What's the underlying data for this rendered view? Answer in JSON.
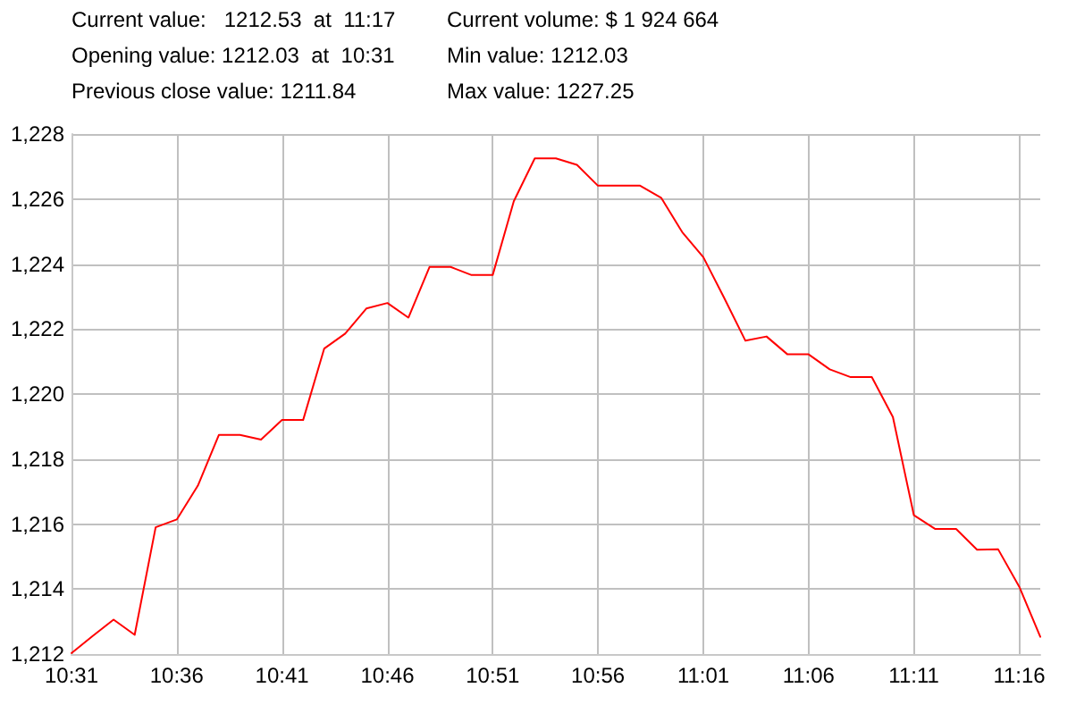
{
  "chart_data": {
    "type": "line",
    "annotations": [
      "Current value:   1212.53  at  11:17",
      "Current volume: $ 1 924 664",
      "Opening value: 1212.03  at  10:31",
      "Min value: 1212.03",
      "Previous close value: 1211.84",
      "Max value: 1227.25"
    ],
    "x": [
      10.5167,
      10.5333,
      10.55,
      10.5667,
      10.5833,
      10.6,
      10.6167,
      10.6333,
      10.65,
      10.6667,
      10.6833,
      10.7,
      10.7167,
      10.7333,
      10.75,
      10.7667,
      10.7833,
      10.8,
      10.8167,
      10.8333,
      10.85,
      10.8667,
      10.8833,
      10.9,
      10.9167,
      10.9333,
      10.95,
      10.9667,
      10.9833,
      11.0,
      11.0167,
      11.0333,
      11.05,
      11.0667,
      11.0833,
      11.1,
      11.1167,
      11.1333,
      11.15,
      11.1667,
      11.1833,
      11.2,
      11.2167,
      11.2333,
      11.25,
      11.2667,
      11.2833
    ],
    "series": [
      {
        "color": "#ff0000",
        "values": [
          1212.03,
          1212.55,
          1213.06,
          1212.59,
          1215.9,
          1216.14,
          1217.18,
          1218.74,
          1218.74,
          1218.6,
          1219.2,
          1219.2,
          1221.4,
          1221.86,
          1222.63,
          1222.8,
          1222.35,
          1223.91,
          1223.91,
          1223.66,
          1223.66,
          1225.93,
          1227.25,
          1227.25,
          1227.05,
          1226.41,
          1226.41,
          1226.41,
          1226.04,
          1224.98,
          1224.21,
          1222.95,
          1221.64,
          1221.77,
          1221.22,
          1221.22,
          1220.76,
          1220.52,
          1220.52,
          1219.29,
          1216.27,
          1215.85,
          1215.85,
          1215.21,
          1215.22,
          1214.07,
          1212.53
        ]
      }
    ],
    "xlim": [
      10.5167,
      11.2833
    ],
    "xticks": [
      {
        "value": 10.5167,
        "label": "10:31"
      },
      {
        "value": 10.6,
        "label": "10:36"
      },
      {
        "value": 10.6833,
        "label": "10:41"
      },
      {
        "value": 10.7667,
        "label": "10:46"
      },
      {
        "value": 10.85,
        "label": "10:51"
      },
      {
        "value": 10.9333,
        "label": "10:56"
      },
      {
        "value": 11.0167,
        "label": "11:01"
      },
      {
        "value": 11.1,
        "label": "11:06"
      },
      {
        "value": 11.1833,
        "label": "11:11"
      },
      {
        "value": 11.2667,
        "label": "11:16"
      }
    ],
    "ylim": [
      1212,
      1228
    ],
    "yticks": [
      {
        "value": 1212,
        "label": "1,212"
      },
      {
        "value": 1214,
        "label": "1,214"
      },
      {
        "value": 1216,
        "label": "1,216"
      },
      {
        "value": 1218,
        "label": "1,218"
      },
      {
        "value": 1220,
        "label": "1,220"
      },
      {
        "value": 1222,
        "label": "1,222"
      },
      {
        "value": 1224,
        "label": "1,224"
      },
      {
        "value": 1226,
        "label": "1,226"
      },
      {
        "value": 1228,
        "label": "1,228"
      }
    ],
    "grid": true,
    "marker": "none",
    "line_style": "solid"
  }
}
